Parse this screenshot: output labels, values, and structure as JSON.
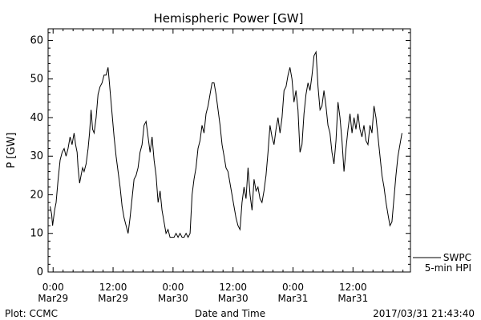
{
  "chart_data": {
    "type": "line",
    "title": "Hemispheric Power [GW]",
    "xlabel": "Date and Time",
    "ylabel": "P [GW]",
    "ylim": [
      0,
      63
    ],
    "yticks": [
      0,
      10,
      20,
      30,
      40,
      50,
      60
    ],
    "xlim_hours": [
      -1,
      71.5
    ],
    "xticks": [
      {
        "hour": 0,
        "time": "0:00",
        "date": "Mar29"
      },
      {
        "hour": 12,
        "time": "12:00",
        "date": "Mar29"
      },
      {
        "hour": 24,
        "time": "0:00",
        "date": "Mar30"
      },
      {
        "hour": 36,
        "time": "12:00",
        "date": "Mar30"
      },
      {
        "hour": 48,
        "time": "0:00",
        "date": "Mar31"
      },
      {
        "hour": 60,
        "time": "12:00",
        "date": "Mar31"
      }
    ],
    "grid": false,
    "legend": {
      "placement": "right",
      "entries": [
        {
          "label": "SWPC"
        },
        {
          "label": "5-min HPI"
        }
      ]
    },
    "series": [
      {
        "name": "5-min HPI",
        "color": "#000000",
        "points": [
          [
            -0.6,
            17
          ],
          [
            -0.3,
            15
          ],
          [
            -0.1,
            12
          ],
          [
            0.3,
            16
          ],
          [
            0.6,
            18
          ],
          [
            1.0,
            24
          ],
          [
            1.4,
            29
          ],
          [
            1.8,
            31
          ],
          [
            2.2,
            32
          ],
          [
            2.6,
            30
          ],
          [
            3.0,
            32
          ],
          [
            3.4,
            35
          ],
          [
            3.8,
            33
          ],
          [
            4.2,
            36
          ],
          [
            4.5,
            33
          ],
          [
            4.8,
            31
          ],
          [
            5.0,
            27
          ],
          [
            5.3,
            23
          ],
          [
            5.6,
            25
          ],
          [
            5.9,
            27
          ],
          [
            6.2,
            26
          ],
          [
            6.6,
            28
          ],
          [
            7.0,
            32
          ],
          [
            7.3,
            36
          ],
          [
            7.6,
            42
          ],
          [
            7.9,
            37
          ],
          [
            8.2,
            36
          ],
          [
            8.6,
            40
          ],
          [
            9.0,
            46
          ],
          [
            9.4,
            48
          ],
          [
            9.8,
            49
          ],
          [
            10.2,
            51
          ],
          [
            10.6,
            51
          ],
          [
            11.0,
            53
          ],
          [
            11.4,
            47
          ],
          [
            11.8,
            41
          ],
          [
            12.2,
            35
          ],
          [
            12.6,
            30
          ],
          [
            13.0,
            26
          ],
          [
            13.4,
            22
          ],
          [
            13.8,
            17
          ],
          [
            14.2,
            14
          ],
          [
            14.6,
            12
          ],
          [
            15.0,
            10
          ],
          [
            15.4,
            14
          ],
          [
            15.8,
            19
          ],
          [
            16.2,
            24
          ],
          [
            16.6,
            25
          ],
          [
            17.0,
            27
          ],
          [
            17.4,
            31
          ],
          [
            17.8,
            33
          ],
          [
            18.2,
            38
          ],
          [
            18.6,
            39
          ],
          [
            19.0,
            35
          ],
          [
            19.4,
            31
          ],
          [
            19.8,
            35
          ],
          [
            20.2,
            29
          ],
          [
            20.6,
            25
          ],
          [
            21.0,
            18
          ],
          [
            21.4,
            21
          ],
          [
            21.8,
            16
          ],
          [
            22.2,
            13
          ],
          [
            22.6,
            10
          ],
          [
            23.0,
            11
          ],
          [
            23.4,
            9
          ],
          [
            23.8,
            9
          ],
          [
            24.2,
            9
          ],
          [
            24.6,
            10
          ],
          [
            25.0,
            9
          ],
          [
            25.4,
            10
          ],
          [
            25.8,
            9
          ],
          [
            26.2,
            9
          ],
          [
            26.6,
            10
          ],
          [
            27.0,
            9
          ],
          [
            27.4,
            10
          ],
          [
            27.8,
            20
          ],
          [
            28.2,
            24
          ],
          [
            28.6,
            27
          ],
          [
            29.0,
            32
          ],
          [
            29.4,
            34
          ],
          [
            29.8,
            38
          ],
          [
            30.2,
            36
          ],
          [
            30.6,
            41
          ],
          [
            31.0,
            43
          ],
          [
            31.4,
            46
          ],
          [
            31.8,
            49
          ],
          [
            32.2,
            49
          ],
          [
            32.6,
            46
          ],
          [
            33.0,
            42
          ],
          [
            33.4,
            38
          ],
          [
            33.8,
            33
          ],
          [
            34.2,
            30
          ],
          [
            34.6,
            27
          ],
          [
            35.0,
            26
          ],
          [
            35.4,
            23
          ],
          [
            35.8,
            20
          ],
          [
            36.2,
            17
          ],
          [
            36.6,
            14
          ],
          [
            37.0,
            12
          ],
          [
            37.4,
            11
          ],
          [
            37.8,
            18
          ],
          [
            38.2,
            22
          ],
          [
            38.6,
            19
          ],
          [
            39.0,
            27
          ],
          [
            39.4,
            20
          ],
          [
            39.8,
            16
          ],
          [
            40.2,
            24
          ],
          [
            40.6,
            21
          ],
          [
            41.0,
            22
          ],
          [
            41.4,
            19
          ],
          [
            41.8,
            18
          ],
          [
            42.2,
            21
          ],
          [
            42.6,
            25
          ],
          [
            43.0,
            31
          ],
          [
            43.4,
            38
          ],
          [
            43.8,
            35
          ],
          [
            44.2,
            33
          ],
          [
            44.6,
            37
          ],
          [
            45.0,
            40
          ],
          [
            45.4,
            36
          ],
          [
            45.8,
            40
          ],
          [
            46.2,
            47
          ],
          [
            46.6,
            48
          ],
          [
            47.0,
            51
          ],
          [
            47.4,
            53
          ],
          [
            47.8,
            50
          ],
          [
            48.2,
            44
          ],
          [
            48.6,
            47
          ],
          [
            49.0,
            42
          ],
          [
            49.4,
            31
          ],
          [
            49.8,
            33
          ],
          [
            50.2,
            41
          ],
          [
            50.6,
            46
          ],
          [
            51.0,
            49
          ],
          [
            51.4,
            47
          ],
          [
            51.8,
            51
          ],
          [
            52.2,
            56
          ],
          [
            52.6,
            57
          ],
          [
            53.0,
            48
          ],
          [
            53.4,
            42
          ],
          [
            53.8,
            43
          ],
          [
            54.2,
            47
          ],
          [
            54.6,
            43
          ],
          [
            55.0,
            38
          ],
          [
            55.4,
            36
          ],
          [
            55.8,
            31
          ],
          [
            56.2,
            28
          ],
          [
            56.6,
            34
          ],
          [
            57.0,
            44
          ],
          [
            57.4,
            40
          ],
          [
            57.8,
            34
          ],
          [
            58.2,
            26
          ],
          [
            58.6,
            32
          ],
          [
            59.0,
            37
          ],
          [
            59.4,
            41
          ],
          [
            59.8,
            36
          ],
          [
            60.2,
            40
          ],
          [
            60.6,
            37
          ],
          [
            61.0,
            41
          ],
          [
            61.4,
            37
          ],
          [
            61.8,
            35
          ],
          [
            62.2,
            38
          ],
          [
            62.6,
            34
          ],
          [
            63.0,
            33
          ],
          [
            63.4,
            38
          ],
          [
            63.8,
            36
          ],
          [
            64.2,
            43
          ],
          [
            64.6,
            40
          ],
          [
            65.0,
            35
          ],
          [
            65.4,
            30
          ],
          [
            65.8,
            25
          ],
          [
            66.2,
            22
          ],
          [
            66.6,
            18
          ],
          [
            67.0,
            15
          ],
          [
            67.4,
            12
          ],
          [
            67.8,
            13
          ],
          [
            68.2,
            19
          ],
          [
            68.6,
            25
          ],
          [
            69.0,
            30
          ],
          [
            69.4,
            33
          ],
          [
            69.8,
            36
          ]
        ]
      }
    ]
  },
  "footer": {
    "left": "Plot: CCMC",
    "right": "2017/03/31 21:43:40"
  }
}
